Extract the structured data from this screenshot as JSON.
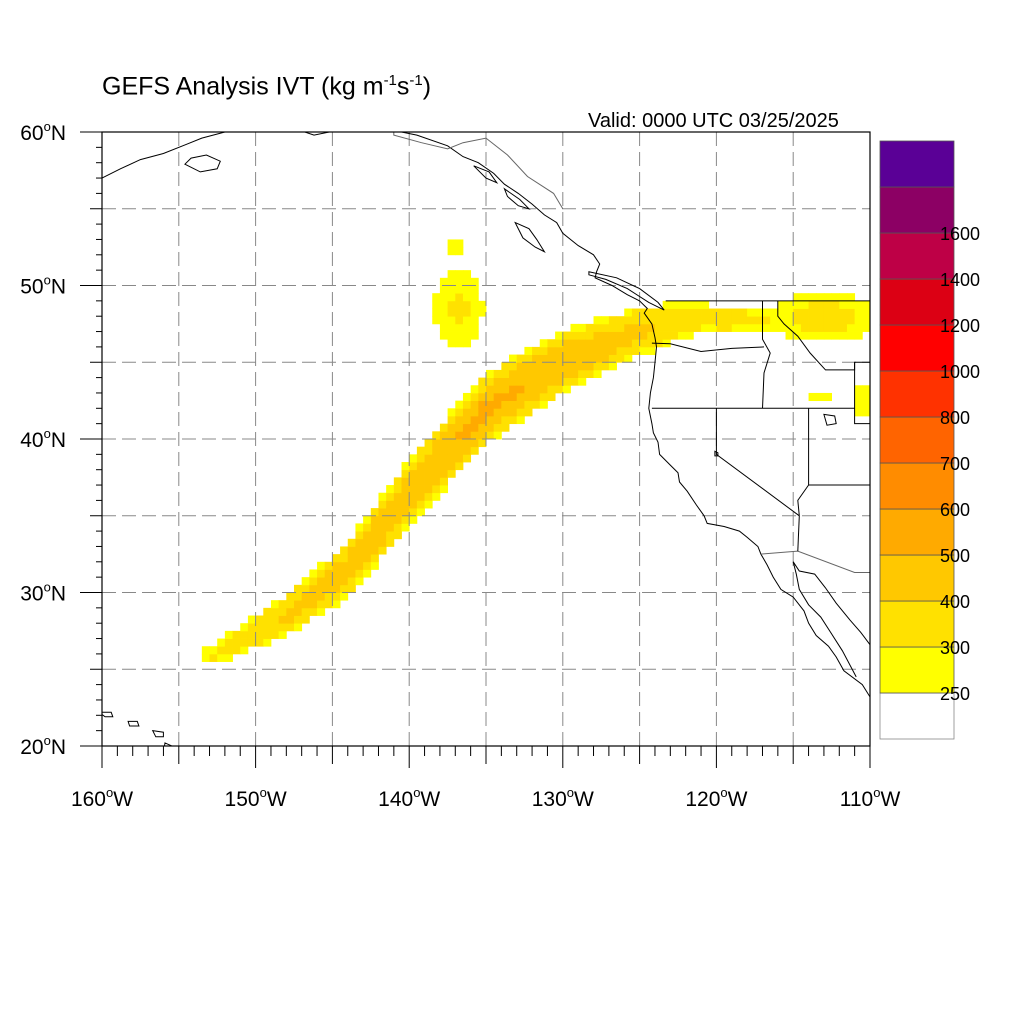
{
  "title": {
    "main": "GEFS Analysis IVT (kg m",
    "sup1": "-1",
    "mid": "s",
    "sup2": "-1",
    "end": ")"
  },
  "valid_label": "Valid: 0000 UTC 03/25/2025",
  "map": {
    "projection": "cylindrical-equidistant",
    "lon_range": [
      -160,
      -110
    ],
    "lat_range": [
      20,
      60
    ],
    "grid": true,
    "grid_lon_step": 5,
    "grid_lat_step": 5,
    "lat_ticks": [
      {
        "value": 20,
        "deg": "20",
        "hemi": "N"
      },
      {
        "value": 30,
        "deg": "30",
        "hemi": "N"
      },
      {
        "value": 40,
        "deg": "40",
        "hemi": "N"
      },
      {
        "value": 50,
        "deg": "50",
        "hemi": "N"
      },
      {
        "value": 60,
        "deg": "60",
        "hemi": "N"
      }
    ],
    "lon_ticks": [
      {
        "value": -160,
        "deg": "160",
        "hemi": "W"
      },
      {
        "value": -150,
        "deg": "150",
        "hemi": "W"
      },
      {
        "value": -140,
        "deg": "140",
        "hemi": "W"
      },
      {
        "value": -130,
        "deg": "130",
        "hemi": "W"
      },
      {
        "value": -120,
        "deg": "120",
        "hemi": "W"
      },
      {
        "value": -110,
        "deg": "110",
        "hemi": "W"
      }
    ]
  },
  "colorbar": {
    "placement": "right",
    "levels": [
      250,
      300,
      400,
      500,
      600,
      700,
      800,
      1000,
      1200,
      1400,
      1600
    ],
    "labels": [
      "250",
      "300",
      "400",
      "500",
      "600",
      "700",
      "800",
      "1000",
      "1200",
      "1400",
      "1600"
    ],
    "colors": [
      "#ffffff",
      "#ffff00",
      "#ffe100",
      "#ffc800",
      "#ffaa00",
      "#ff8c00",
      "#ff6400",
      "#ff3200",
      "#ff0000",
      "#dc0014",
      "#be0046",
      "#8c0064",
      "#5a0096"
    ]
  },
  "ivt_field": {
    "axis_lon": [
      -153,
      -148,
      -144,
      -140,
      -135,
      -130,
      -125,
      -121
    ],
    "axis_lat": [
      25.8,
      28.5,
      31.5,
      36.5,
      42.0,
      45.0,
      47.0,
      48.0
    ],
    "axis_halfwidth_deg": [
      0.9,
      1.5,
      2.0,
      2.4,
      2.5,
      2.3,
      1.8,
      1.2
    ],
    "axis_peak_ivt": [
      300,
      420,
      460,
      470,
      520,
      480,
      420,
      350
    ],
    "blobs": [
      {
        "lon": -136.8,
        "lat": 48.5,
        "rlon": 1.7,
        "rlat": 2.6,
        "ivt": 310
      },
      {
        "lon": -137.0,
        "lat": 52.4,
        "rlon": 0.4,
        "rlat": 0.8,
        "ivt": 280
      },
      {
        "lon": -119.5,
        "lat": 47.8,
        "rlon": 4.5,
        "rlat": 0.9,
        "ivt": 330
      },
      {
        "lon": -113.0,
        "lat": 47.9,
        "rlon": 3.5,
        "rlat": 1.6,
        "ivt": 330
      },
      {
        "lon": -110.5,
        "lat": 42.4,
        "rlon": 0.8,
        "rlat": 1.0,
        "ivt": 300
      },
      {
        "lon": -113.3,
        "lat": 42.9,
        "rlon": 0.9,
        "rlat": 0.4,
        "ivt": 290
      }
    ]
  }
}
